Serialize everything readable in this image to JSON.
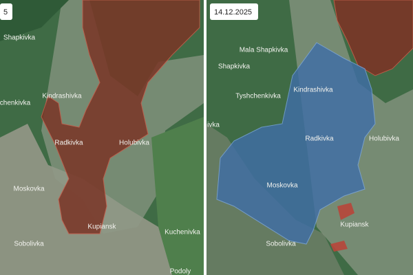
{
  "panels": [
    {
      "date": "5",
      "labels": [
        "Shapkivka",
        "Kindrashivka",
        "chenkivka",
        "Radkivka",
        "Holubivka",
        "Moskovka",
        "Kupiansk",
        "Kuchenivka",
        "Sobolivka",
        "Podoly"
      ]
    },
    {
      "date": "14.12.2025",
      "labels": [
        "Mala Shapkivka",
        "Shapkivka",
        "Tyshchenkivka",
        "Kindrashivka",
        "ivka",
        "Radkivka",
        "Holubivka",
        "Moskovka",
        "Kupiansk",
        "Sobolivka"
      ]
    }
  ]
}
